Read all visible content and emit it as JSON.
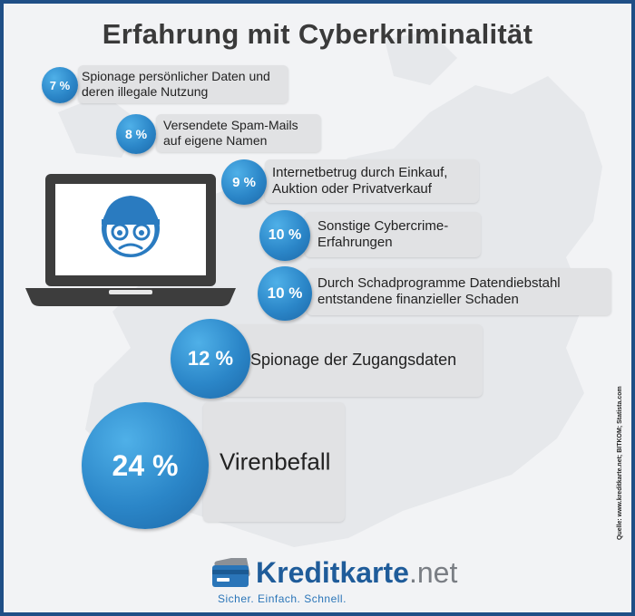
{
  "title": "Erfahrung mit Cyberkriminalität",
  "chart_data": {
    "type": "bar",
    "title": "Erfahrung mit Cyberkriminalität",
    "unit": "%",
    "categories": [
      "Spionage persönlicher Daten und\nderen illegale Nutzung",
      "Versendete Spam-Mails\nauf eigene Namen",
      "Internetbetrug durch Einkauf,\nAuktion oder Privatverkauf",
      "Sonstige Cybercrime-\nErfahrungen",
      "Durch Schadprogramme Datendiebstahl\nentstandene finanzieller Schaden",
      "Spionage der Zugangsdaten",
      "Virenbefall"
    ],
    "values": [
      7,
      8,
      9,
      10,
      10,
      12,
      24
    ],
    "value_labels": [
      "7 %",
      "8 %",
      "9 %",
      "10 %",
      "10 %",
      "12 %",
      "24 %"
    ]
  },
  "source": "Quelle: www.kreditkarte.net; BITKOM; Statista.com",
  "logo": {
    "name_bold": "Kreditkarte",
    "name_suffix": ".net",
    "tagline": "Sicher. Einfach. Schnell."
  },
  "colors": {
    "accent_blue": "#2b86c8",
    "frame_blue": "#1f4f86",
    "pill_gray": "#e1e2e4"
  },
  "icons": [
    "laptop-icon",
    "hacker-face-icon",
    "credit-card-icon"
  ]
}
